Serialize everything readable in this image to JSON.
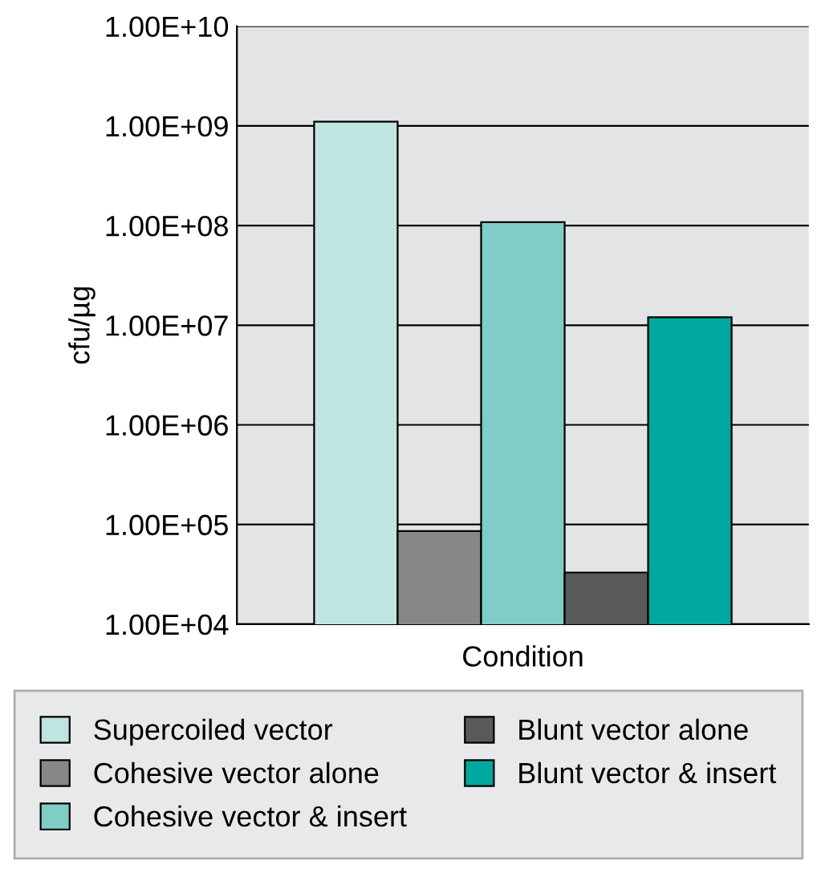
{
  "chart_data": {
    "type": "bar",
    "xlabel": "Condition",
    "ylabel": "cfu/µg",
    "categories": [
      null
    ],
    "log": true,
    "grid": "y",
    "legend": "bottom",
    "ylim": [
      10000,
      10000000000
    ],
    "yticks": [
      {
        "value": 10000,
        "label": "1.00E+04"
      },
      {
        "value": 100000,
        "label": "1.00E+05"
      },
      {
        "value": 1000000,
        "label": "1.00E+06"
      },
      {
        "value": 10000000,
        "label": "1.00E+07"
      },
      {
        "value": 100000000,
        "label": "1.00E+08"
      },
      {
        "value": 1000000000,
        "label": "1.00E+09"
      },
      {
        "value": 10000000000,
        "label": "1.00E+10"
      }
    ],
    "series": [
      {
        "name": "Supercoiled vector",
        "color": "#c0e4df",
        "values": [
          1100000000
        ]
      },
      {
        "name": "Cohesive vector alone",
        "color": "#858789",
        "values": [
          86000
        ]
      },
      {
        "name": "Cohesive vector & insert",
        "color": "#7fcdc6",
        "values": [
          108000000
        ]
      },
      {
        "name": "Blunt vector alone",
        "color": "#58595b",
        "values": [
          33000
        ]
      },
      {
        "name": "Blunt vector & insert",
        "color": "#00a99d",
        "values": [
          12000000
        ]
      }
    ]
  }
}
